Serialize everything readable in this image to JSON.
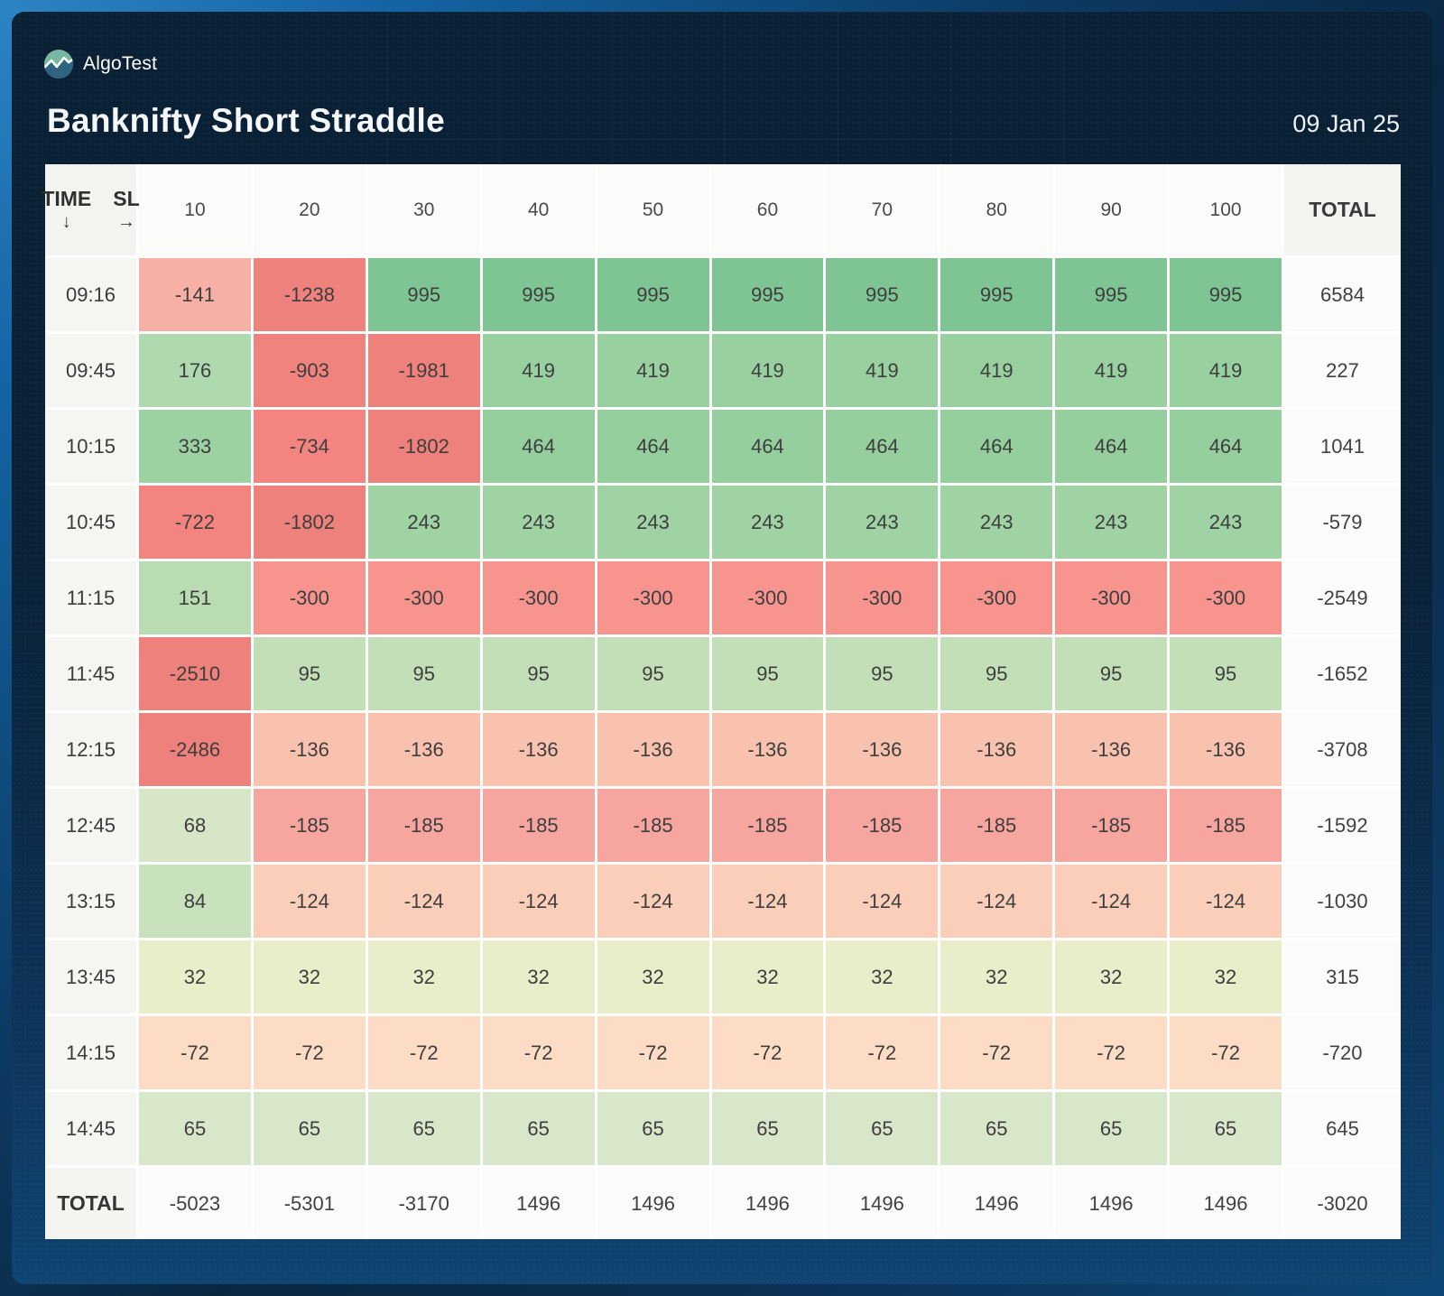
{
  "brand": {
    "name": "AlgoTest"
  },
  "header": {
    "title": "Banknifty Short Straddle",
    "date": "09 Jan 25"
  },
  "table": {
    "corner": {
      "row_label": "TIME",
      "row_arrow": "↓",
      "col_label": "SL",
      "col_arrow": "→"
    },
    "col_headers": [
      "10",
      "20",
      "30",
      "40",
      "50",
      "60",
      "70",
      "80",
      "90",
      "100"
    ],
    "total_header": "TOTAL",
    "footer_label": "TOTAL",
    "rows": [
      {
        "time": "09:16",
        "values": [
          -141,
          -1238,
          995,
          995,
          995,
          995,
          995,
          995,
          995,
          995
        ],
        "total": 6584
      },
      {
        "time": "09:45",
        "values": [
          176,
          -903,
          -1981,
          419,
          419,
          419,
          419,
          419,
          419,
          419
        ],
        "total": 227
      },
      {
        "time": "10:15",
        "values": [
          333,
          -734,
          -1802,
          464,
          464,
          464,
          464,
          464,
          464,
          464
        ],
        "total": 1041
      },
      {
        "time": "10:45",
        "values": [
          -722,
          -1802,
          243,
          243,
          243,
          243,
          243,
          243,
          243,
          243
        ],
        "total": -579
      },
      {
        "time": "11:15",
        "values": [
          151,
          -300,
          -300,
          -300,
          -300,
          -300,
          -300,
          -300,
          -300,
          -300
        ],
        "total": -2549
      },
      {
        "time": "11:45",
        "values": [
          -2510,
          95,
          95,
          95,
          95,
          95,
          95,
          95,
          95,
          95
        ],
        "total": -1652
      },
      {
        "time": "12:15",
        "values": [
          -2486,
          -136,
          -136,
          -136,
          -136,
          -136,
          -136,
          -136,
          -136,
          -136
        ],
        "total": -3708
      },
      {
        "time": "12:45",
        "values": [
          68,
          -185,
          -185,
          -185,
          -185,
          -185,
          -185,
          -185,
          -185,
          -185
        ],
        "total": -1592
      },
      {
        "time": "13:15",
        "values": [
          84,
          -124,
          -124,
          -124,
          -124,
          -124,
          -124,
          -124,
          -124,
          -124
        ],
        "total": -1030
      },
      {
        "time": "13:45",
        "values": [
          32,
          32,
          32,
          32,
          32,
          32,
          32,
          32,
          32,
          32
        ],
        "total": 315
      },
      {
        "time": "14:15",
        "values": [
          -72,
          -72,
          -72,
          -72,
          -72,
          -72,
          -72,
          -72,
          -72,
          -72
        ],
        "total": -720
      },
      {
        "time": "14:45",
        "values": [
          65,
          65,
          65,
          65,
          65,
          65,
          65,
          65,
          65,
          65
        ],
        "total": 645
      }
    ],
    "col_totals": [
      -5023,
      -5301,
      -3170,
      1496,
      1496,
      1496,
      1496,
      1496,
      1496,
      1496
    ],
    "grand_total": -3020
  },
  "colors": {
    "loss_strong": "#ef817c",
    "profit_strong": "#7ec593",
    "heatmap_anchors": [
      [
        -2600,
        "#ef817c"
      ],
      [
        -1000,
        "#f0827d"
      ],
      [
        -720,
        "#f3847f"
      ],
      [
        -300,
        "#f8948e"
      ],
      [
        -185,
        "#f6a69e"
      ],
      [
        -141,
        "#f7b0a6"
      ],
      [
        -136,
        "#f9c2ae"
      ],
      [
        -124,
        "#fbceba"
      ],
      [
        -72,
        "#fcdcc4"
      ],
      [
        0,
        "#f5eed5"
      ],
      [
        32,
        "#e9edc9"
      ],
      [
        65,
        "#d8e7c9"
      ],
      [
        85,
        "#c8e2bd"
      ],
      [
        95,
        "#c2dfb8"
      ],
      [
        150,
        "#b9dcb3"
      ],
      [
        175,
        "#afd9ae"
      ],
      [
        245,
        "#a0d3a4"
      ],
      [
        420,
        "#98d0a0"
      ],
      [
        465,
        "#95cf9d"
      ],
      [
        995,
        "#7ec593"
      ]
    ]
  }
}
